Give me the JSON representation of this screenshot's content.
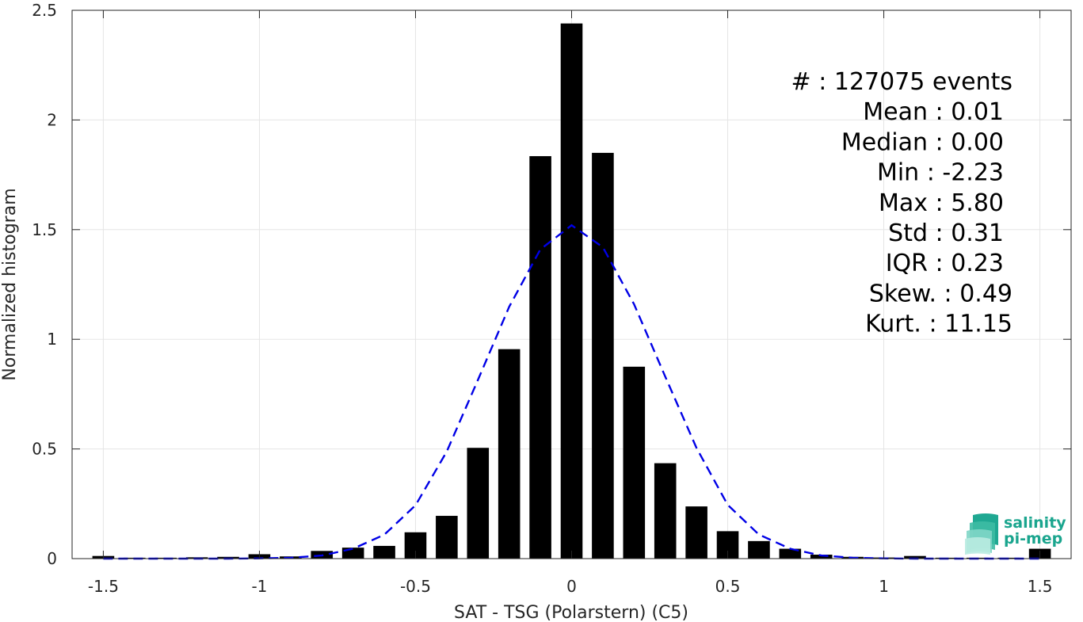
{
  "chart_data": {
    "type": "bar",
    "xlabel": "SAT - TSG (Polarstern) (C5)",
    "ylabel": "Normalized histogram",
    "xlim": [
      -1.6,
      1.6
    ],
    "ylim": [
      0,
      2.5
    ],
    "xticks": [
      -1.5,
      -1,
      -0.5,
      0,
      0.5,
      1,
      1.5
    ],
    "xtick_labels": [
      "-1.5",
      "-1",
      "-0.5",
      "0",
      "0.5",
      "1",
      "1.5"
    ],
    "yticks": [
      0,
      0.5,
      1,
      1.5,
      2,
      2.5
    ],
    "ytick_labels": [
      "0",
      "0.5",
      "1",
      "1.5",
      "2",
      "2.5"
    ],
    "grid": true,
    "bar_width": 0.07,
    "bar_color": "#000000",
    "bars": {
      "x": [
        -1.5,
        -1.4,
        -1.3,
        -1.2,
        -1.1,
        -1.0,
        -0.9,
        -0.8,
        -0.7,
        -0.6,
        -0.5,
        -0.4,
        -0.3,
        -0.2,
        -0.1,
        0.0,
        0.1,
        0.2,
        0.3,
        0.4,
        0.5,
        0.6,
        0.7,
        0.8,
        0.9,
        1.0,
        1.1,
        1.2,
        1.3,
        1.4,
        1.5
      ],
      "values": [
        0.012,
        0.004,
        0.004,
        0.006,
        0.008,
        0.02,
        0.01,
        0.035,
        0.05,
        0.058,
        0.12,
        0.195,
        0.505,
        0.955,
        1.835,
        2.44,
        1.85,
        0.875,
        0.435,
        0.238,
        0.125,
        0.08,
        0.045,
        0.018,
        0.008,
        0.005,
        0.012,
        0.004,
        0.004,
        0.004,
        0.045
      ]
    },
    "fit_curve": {
      "style": "dashed",
      "color": "#0000e6",
      "x": [
        -1.5,
        -1.4,
        -1.3,
        -1.2,
        -1.1,
        -1.0,
        -0.9,
        -0.8,
        -0.7,
        -0.6,
        -0.5,
        -0.4,
        -0.3,
        -0.2,
        -0.1,
        0.0,
        0.1,
        0.2,
        0.3,
        0.4,
        0.5,
        0.6,
        0.7,
        0.8,
        0.9,
        1.0,
        1.1,
        1.2,
        1.3,
        1.4,
        1.5
      ],
      "values": [
        0.0,
        0.0,
        0.0,
        0.0,
        0.0,
        0.001,
        0.004,
        0.014,
        0.045,
        0.109,
        0.243,
        0.488,
        0.815,
        1.148,
        1.41,
        1.52,
        1.42,
        1.16,
        0.83,
        0.505,
        0.245,
        0.11,
        0.045,
        0.014,
        0.004,
        0.001,
        0.0,
        0.0,
        0.0,
        0.0,
        0.0
      ]
    },
    "stats": [
      {
        "label": "#",
        "value": "127075 events",
        "sep": "  : "
      },
      {
        "label": "Mean",
        "value": "0.01",
        "sep": " : "
      },
      {
        "label": "Median",
        "value": "0.00",
        "sep": " : "
      },
      {
        "label": "Min",
        "value": "-2.23",
        "sep": " : "
      },
      {
        "label": "Max",
        "value": "5.80",
        "sep": " : "
      },
      {
        "label": "Std",
        "value": "0.31",
        "sep": " : "
      },
      {
        "label": "IQR",
        "value": "0.23",
        "sep": " : "
      },
      {
        "label": "Skew.",
        "value": "0.49",
        "sep": " : "
      },
      {
        "label": "Kurt.",
        "value": "11.15",
        "sep": " : "
      }
    ]
  },
  "logo": {
    "line1": "salinity",
    "line2": "pi-mep",
    "color": "#1aa58e"
  }
}
